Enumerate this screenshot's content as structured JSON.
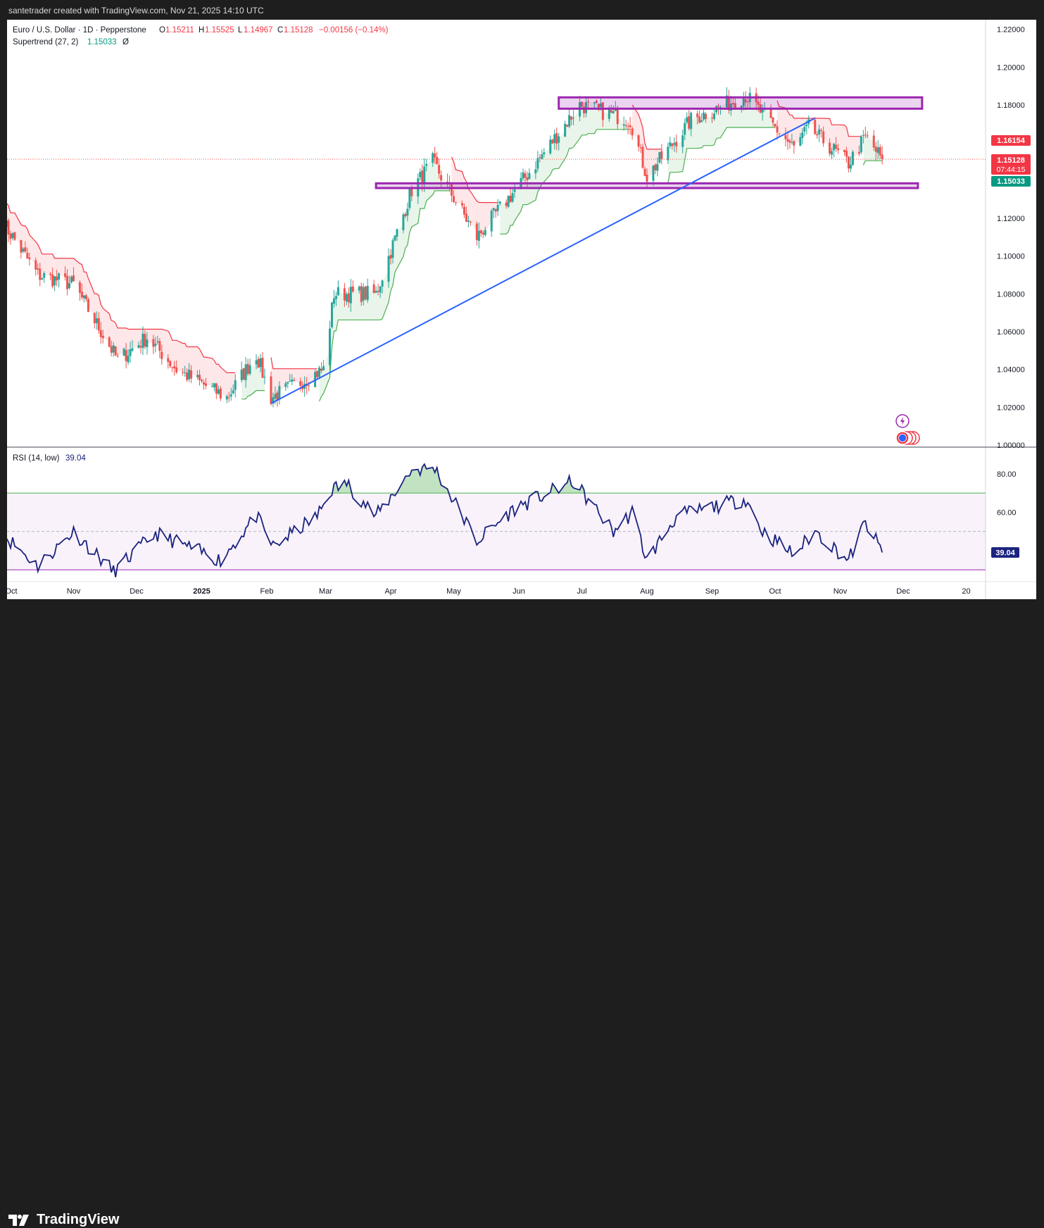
{
  "header": {
    "text": "santetrader created with TradingView.com, Nov 21, 2025 14:10 UTC"
  },
  "legend": {
    "symbol": "Euro / U.S. Dollar · 1D · Pepperstone",
    "o_label": "O",
    "o_value": "1.15211",
    "h_label": "H",
    "h_value": "1.15525",
    "l_label": "L",
    "l_value": "1.14967",
    "c_label": "C",
    "c_value": "1.15128",
    "change": "−0.00156 (−0.14%)",
    "indicator": "Supertrend (27, 2)",
    "indicator_value": "1.15033",
    "indicator_symbol": "Ø"
  },
  "rsi_legend": {
    "label": "RSI (14, low)",
    "value": "39.04"
  },
  "price_axis": {
    "ticks": [
      "1.22000",
      "1.20000",
      "1.18000",
      "1.16000",
      "1.14000",
      "1.12000",
      "1.10000",
      "1.08000",
      "1.06000",
      "1.04000",
      "1.02000",
      "1.00000"
    ]
  },
  "price_badges": {
    "supertrend_upper": "1.16154",
    "last_price": "1.15128",
    "countdown": "07:44:15",
    "supertrend_lower": "1.15033"
  },
  "rsi_axis": {
    "ticks": [
      "80.00",
      "60.00"
    ],
    "badge": "39.04"
  },
  "time_axis": {
    "labels": [
      "Oct",
      "Nov",
      "Dec",
      "2025",
      "Feb",
      "Mar",
      "Apr",
      "May",
      "Jun",
      "Jul",
      "Aug",
      "Sep",
      "Oct",
      "Nov",
      "Dec",
      "20"
    ]
  },
  "footer": {
    "brand": "TradingView"
  },
  "colors": {
    "bull": "#26a69a",
    "bear": "#ef5350",
    "supertrend_up": "#4caf50",
    "supertrend_down": "#f23645",
    "trendline": "#2962ff",
    "zone_border": "#9c27b0",
    "rsi_line": "#1a237e",
    "rsi_upper": "#4caf50",
    "rsi_lower": "#9c27b0"
  },
  "chart_data": {
    "type": "candlestick",
    "symbol": "EURUSD",
    "timeframe": "1D",
    "ylim": [
      1.0,
      1.225
    ],
    "anchors": [
      {
        "t": "2024-09-27",
        "p": 1.12
      },
      {
        "t": "2024-10-15",
        "p": 1.09
      },
      {
        "t": "2024-11-01",
        "p": 1.085
      },
      {
        "t": "2024-11-22",
        "p": 1.045
      },
      {
        "t": "2024-12-06",
        "p": 1.057
      },
      {
        "t": "2024-12-20",
        "p": 1.04
      },
      {
        "t": "2025-01-13",
        "p": 1.025
      },
      {
        "t": "2025-01-27",
        "p": 1.048
      },
      {
        "t": "2025-02-03",
        "p": 1.025
      },
      {
        "t": "2025-02-28",
        "p": 1.04
      },
      {
        "t": "2025-03-05",
        "p": 1.08
      },
      {
        "t": "2025-03-25",
        "p": 1.08
      },
      {
        "t": "2025-04-11",
        "p": 1.135
      },
      {
        "t": "2025-04-21",
        "p": 1.15
      },
      {
        "t": "2025-05-12",
        "p": 1.11
      },
      {
        "t": "2025-06-05",
        "p": 1.143
      },
      {
        "t": "2025-06-30",
        "p": 1.18
      },
      {
        "t": "2025-07-24",
        "p": 1.172
      },
      {
        "t": "2025-08-01",
        "p": 1.142
      },
      {
        "t": "2025-08-22",
        "p": 1.172
      },
      {
        "t": "2025-09-17",
        "p": 1.185
      },
      {
        "t": "2025-10-10",
        "p": 1.157
      },
      {
        "t": "2025-10-17",
        "p": 1.168
      },
      {
        "t": "2025-11-05",
        "p": 1.149
      },
      {
        "t": "2025-11-13",
        "p": 1.163
      },
      {
        "t": "2025-11-21",
        "p": 1.15128
      }
    ],
    "supertrend": {
      "length": 27,
      "factor": 2,
      "value": 1.15033
    },
    "resistance_zone": {
      "from": "2025-06-20",
      "to": "2025-12-10",
      "top": 1.184,
      "bottom": 1.178
    },
    "support_zone": {
      "from": "2025-03-25",
      "to": "2025-12-08",
      "top": 1.1385,
      "bottom": 1.136
    },
    "trendline": [
      {
        "t": "2025-02-03",
        "p": 1.022
      },
      {
        "t": "2025-10-20",
        "p": 1.173
      }
    ],
    "rsi": {
      "length": 14,
      "upper_band": 70,
      "middle_band": 50,
      "lower_band": 30,
      "last": 39.04,
      "anchors": [
        {
          "t": "2024-09-27",
          "v": 50
        },
        {
          "t": "2024-10-15",
          "v": 32
        },
        {
          "t": "2024-11-01",
          "v": 50
        },
        {
          "t": "2024-11-20",
          "v": 29
        },
        {
          "t": "2024-12-10",
          "v": 49
        },
        {
          "t": "2025-01-10",
          "v": 35
        },
        {
          "t": "2025-01-27",
          "v": 58
        },
        {
          "t": "2025-02-04",
          "v": 42
        },
        {
          "t": "2025-02-25",
          "v": 58
        },
        {
          "t": "2025-03-04",
          "v": 72
        },
        {
          "t": "2025-03-11",
          "v": 75
        },
        {
          "t": "2025-03-25",
          "v": 58
        },
        {
          "t": "2025-04-11",
          "v": 82
        },
        {
          "t": "2025-04-22",
          "v": 83
        },
        {
          "t": "2025-05-12",
          "v": 45
        },
        {
          "t": "2025-05-30",
          "v": 62
        },
        {
          "t": "2025-06-27",
          "v": 76
        },
        {
          "t": "2025-07-16",
          "v": 50
        },
        {
          "t": "2025-07-25",
          "v": 60
        },
        {
          "t": "2025-08-01",
          "v": 35
        },
        {
          "t": "2025-08-15",
          "v": 58
        },
        {
          "t": "2025-09-17",
          "v": 67
        },
        {
          "t": "2025-09-25",
          "v": 50
        },
        {
          "t": "2025-10-10",
          "v": 38
        },
        {
          "t": "2025-10-20",
          "v": 50
        },
        {
          "t": "2025-11-05",
          "v": 35
        },
        {
          "t": "2025-11-13",
          "v": 55
        },
        {
          "t": "2025-11-21",
          "v": 39.04
        }
      ]
    }
  }
}
